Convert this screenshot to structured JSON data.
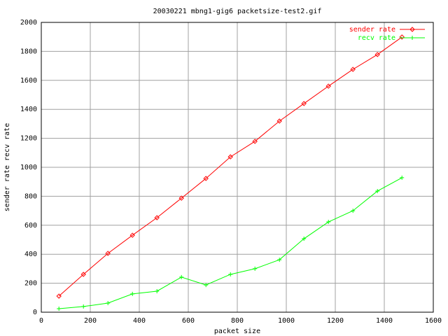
{
  "chart_data": {
    "type": "line",
    "title": "20030221 mbng1-gig6 packetsize-test2.gif",
    "xlabel": "packet size",
    "ylabel": "sender rate recv rate",
    "x": [
      72,
      172,
      272,
      372,
      472,
      572,
      672,
      772,
      872,
      972,
      1072,
      1172,
      1272,
      1372,
      1472
    ],
    "series": [
      {
        "name": "sender rate",
        "color": "#ff0000",
        "marker": "diamond",
        "values": [
          111,
          261,
          406,
          531,
          652,
          787,
          923,
          1072,
          1179,
          1319,
          1440,
          1560,
          1676,
          1778,
          1899
        ]
      },
      {
        "name": "recv rate",
        "color": "#00ff00",
        "marker": "plus",
        "values": [
          24,
          39,
          63,
          126,
          145,
          242,
          188,
          261,
          300,
          362,
          507,
          623,
          700,
          836,
          928
        ]
      }
    ],
    "xlim": [
      0,
      1600
    ],
    "xticks": [
      0,
      200,
      400,
      600,
      800,
      1000,
      1200,
      1400,
      1600
    ],
    "ylim": [
      0,
      2000
    ],
    "yticks": [
      0,
      200,
      400,
      600,
      800,
      1000,
      1200,
      1400,
      1600,
      1800,
      2000
    ],
    "grid": true,
    "legend": "top-right"
  }
}
